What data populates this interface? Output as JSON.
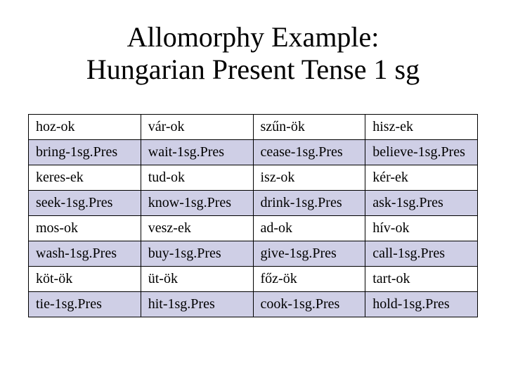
{
  "title_line1": "Allomorphy Example:",
  "title_line2": "Hungarian Present Tense 1 sg",
  "table": {
    "background_color": "#ffffff",
    "shaded_row_color": "#cfcfe6",
    "border_color": "#000000",
    "cell_fontsize": 20,
    "title_fontsize": 40,
    "font_family": "Times New Roman",
    "columns": 4,
    "rows": [
      {
        "shaded": false,
        "cells": [
          "hoz-ok",
          "vár-ok",
          "szűn-ök",
          "hisz-ek"
        ]
      },
      {
        "shaded": true,
        "cells": [
          "bring-1sg.Pres",
          "wait-1sg.Pres",
          "cease-1sg.Pres",
          "believe-1sg.Pres"
        ]
      },
      {
        "shaded": false,
        "cells": [
          "keres-ek",
          "tud-ok",
          "isz-ok",
          "kér-ek"
        ]
      },
      {
        "shaded": true,
        "cells": [
          "seek-1sg.Pres",
          "know-1sg.Pres",
          "drink-1sg.Pres",
          "ask-1sg.Pres"
        ]
      },
      {
        "shaded": false,
        "cells": [
          "mos-ok",
          "vesz-ek",
          "ad-ok",
          "hív-ok"
        ]
      },
      {
        "shaded": true,
        "cells": [
          "wash-1sg.Pres",
          "buy-1sg.Pres",
          "give-1sg.Pres",
          "call-1sg.Pres"
        ]
      },
      {
        "shaded": false,
        "cells": [
          "köt-ök",
          "üt-ök",
          "főz-ök",
          "tart-ok"
        ]
      },
      {
        "shaded": true,
        "cells": [
          "tie-1sg.Pres",
          "hit-1sg.Pres",
          "cook-1sg.Pres",
          "hold-1sg.Pres"
        ]
      }
    ]
  }
}
